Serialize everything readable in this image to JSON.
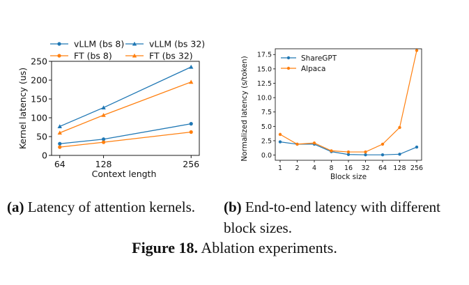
{
  "chart_data": [
    {
      "type": "line",
      "x": [
        64,
        128,
        256
      ],
      "xticks": [
        "64",
        "128",
        "256"
      ],
      "xlim": [
        52,
        268
      ],
      "ylim": [
        0,
        250
      ],
      "yticks": [
        "0",
        "50",
        "100",
        "150",
        "200",
        "250"
      ],
      "xlabel": "Context length",
      "ylabel": "Kernel latency (us)",
      "legend_placement": "top",
      "series": [
        {
          "name": "vLLM (bs 8)",
          "values": [
            31,
            43,
            84
          ],
          "color": "#1f77b4",
          "marker": "circle"
        },
        {
          "name": "vLLM (bs 32)",
          "values": [
            77,
            127,
            235
          ],
          "color": "#1f77b4",
          "marker": "triangle"
        },
        {
          "name": "FT (bs 8)",
          "values": [
            22,
            35,
            62
          ],
          "color": "#ff7f0e",
          "marker": "circle"
        },
        {
          "name": "FT (bs 32)",
          "values": [
            60,
            107,
            195
          ],
          "color": "#ff7f0e",
          "marker": "triangle"
        }
      ]
    },
    {
      "type": "line",
      "categories": [
        "1",
        "2",
        "4",
        "8",
        "16",
        "32",
        "64",
        "128",
        "256"
      ],
      "ylim": [
        -0.9,
        18.5
      ],
      "yticks": [
        "0.0",
        "2.5",
        "5.0",
        "7.5",
        "10.0",
        "12.5",
        "15.0",
        "17.5"
      ],
      "xlabel": "Block size",
      "ylabel": "Normalized latency (s/token)",
      "legend_placement": "top-left",
      "series": [
        {
          "name": "ShareGPT",
          "values": [
            2.3,
            1.9,
            1.9,
            0.6,
            0.1,
            0.05,
            0.05,
            0.15,
            1.4
          ],
          "color": "#1f77b4",
          "marker": "circle"
        },
        {
          "name": "Alpaca",
          "values": [
            3.6,
            1.9,
            2.1,
            0.75,
            0.55,
            0.55,
            1.9,
            4.8,
            18.2
          ],
          "color": "#ff7f0e",
          "marker": "circle"
        }
      ]
    }
  ],
  "captions": {
    "a_label": "(a)",
    "a_text": "Latency of attention kernels.",
    "b_label": "(b)",
    "b_text": "End-to-end latency with different block sizes.",
    "figure_label": "Figure 18.",
    "figure_text": "Ablation experiments."
  }
}
